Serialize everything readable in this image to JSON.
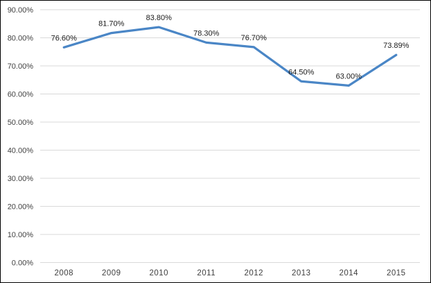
{
  "chart_data": {
    "type": "line",
    "title": "",
    "xlabel": "",
    "ylabel": "",
    "categories": [
      "2008",
      "2009",
      "2010",
      "2011",
      "2012",
      "2013",
      "2014",
      "2015"
    ],
    "series": [
      {
        "name": "series-1",
        "values": [
          76.6,
          81.7,
          83.8,
          78.3,
          76.7,
          64.5,
          63.0,
          73.89
        ],
        "data_labels": [
          "76.60%",
          "81.70%",
          "83.80%",
          "78.30%",
          "76.70%",
          "64.50%",
          "63.00%",
          "73.89%"
        ]
      }
    ],
    "ylim": [
      0,
      90
    ],
    "y_step": 10,
    "y_tick_labels": [
      "0.00%",
      "10.00%",
      "20.00%",
      "30.00%",
      "40.00%",
      "50.00%",
      "60.00%",
      "70.00%",
      "80.00%",
      "90.00%"
    ],
    "grid": true,
    "legend": "none",
    "colors": {
      "line": "#4a86c6",
      "gridline": "#d9d9d9",
      "tick_label": "#3f3f3f",
      "data_label": "#1a1a1a",
      "background": "#ffffff",
      "border": "#000000"
    }
  }
}
